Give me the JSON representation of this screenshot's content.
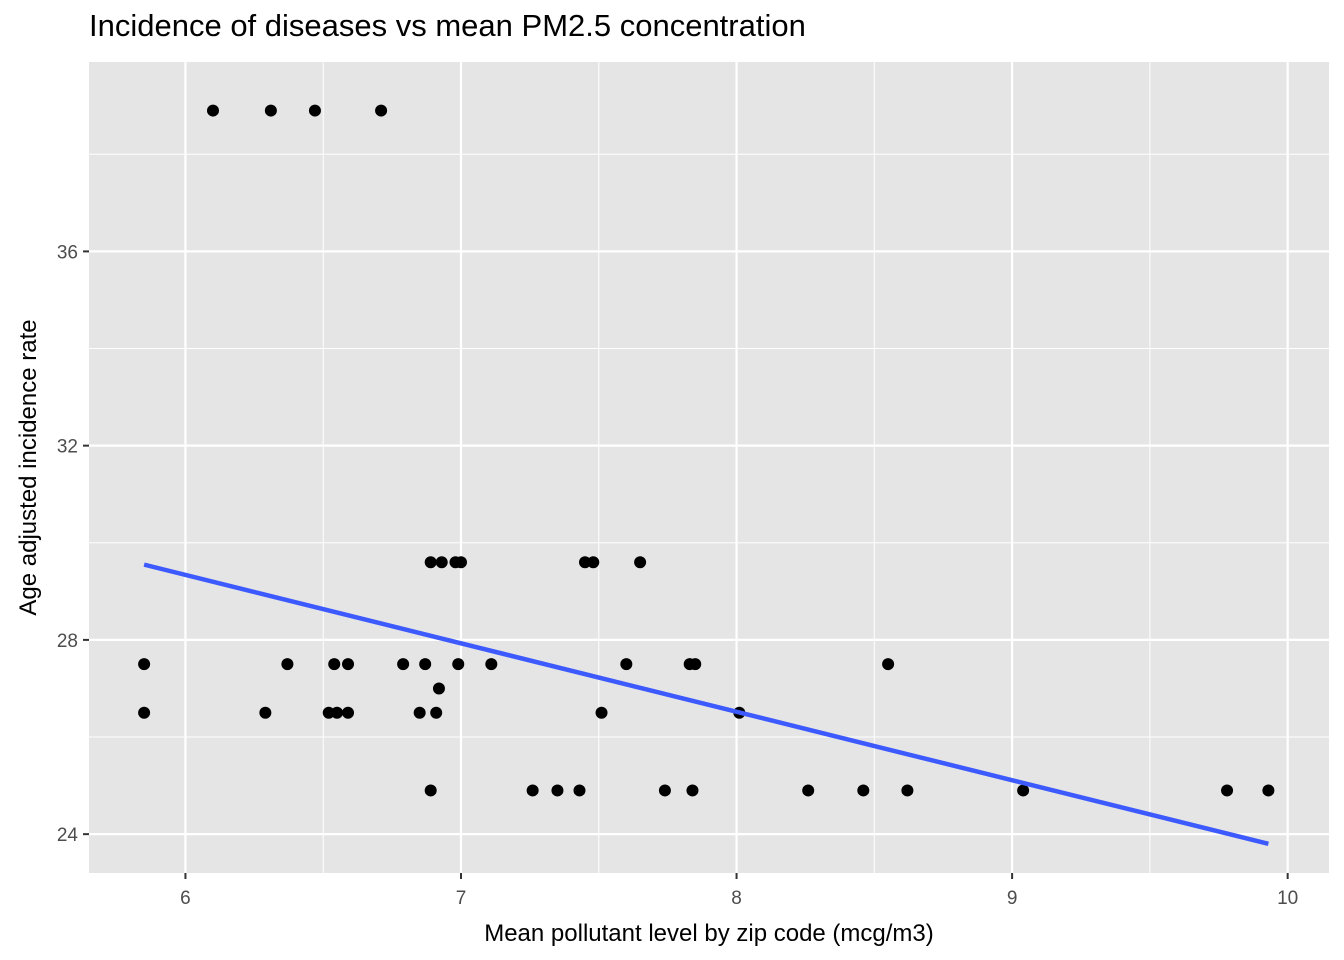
{
  "chart_data": {
    "type": "scatter",
    "title": "Incidence of diseases vs mean PM2.5 concentration",
    "xlabel": "Mean pollutant level by zip code (mcg/m3)",
    "ylabel": "Age adjusted incidence rate",
    "xlim": [
      5.65,
      10.15
    ],
    "ylim": [
      23.2,
      39.9
    ],
    "xticks": [
      6,
      7,
      8,
      9,
      10
    ],
    "xtick_labels": [
      "6",
      "7",
      "8",
      "9",
      "10"
    ],
    "yticks": [
      24,
      28,
      32,
      36
    ],
    "ytick_labels": [
      "24",
      "28",
      "32",
      "36"
    ],
    "grid": true,
    "background": "#e5e5e5",
    "grid_color": "#ffffff",
    "point_color": "#000000",
    "trend_color": "#3d5afe",
    "points": [
      {
        "x": 6.1,
        "y": 38.9
      },
      {
        "x": 6.31,
        "y": 38.9
      },
      {
        "x": 6.47,
        "y": 38.9
      },
      {
        "x": 6.71,
        "y": 38.9
      },
      {
        "x": 6.89,
        "y": 29.6
      },
      {
        "x": 6.93,
        "y": 29.6
      },
      {
        "x": 6.98,
        "y": 29.6
      },
      {
        "x": 7.0,
        "y": 29.6
      },
      {
        "x": 7.45,
        "y": 29.6
      },
      {
        "x": 7.48,
        "y": 29.6
      },
      {
        "x": 7.65,
        "y": 29.6
      },
      {
        "x": 5.85,
        "y": 27.5
      },
      {
        "x": 6.37,
        "y": 27.5
      },
      {
        "x": 6.54,
        "y": 27.5
      },
      {
        "x": 6.59,
        "y": 27.5
      },
      {
        "x": 6.79,
        "y": 27.5
      },
      {
        "x": 6.87,
        "y": 27.5
      },
      {
        "x": 6.99,
        "y": 27.5
      },
      {
        "x": 7.11,
        "y": 27.5
      },
      {
        "x": 7.6,
        "y": 27.5
      },
      {
        "x": 7.83,
        "y": 27.5
      },
      {
        "x": 7.85,
        "y": 27.5
      },
      {
        "x": 8.55,
        "y": 27.5
      },
      {
        "x": 6.92,
        "y": 27.0
      },
      {
        "x": 5.85,
        "y": 26.5
      },
      {
        "x": 6.29,
        "y": 26.5
      },
      {
        "x": 6.52,
        "y": 26.5
      },
      {
        "x": 6.55,
        "y": 26.5
      },
      {
        "x": 6.59,
        "y": 26.5
      },
      {
        "x": 6.85,
        "y": 26.5
      },
      {
        "x": 6.91,
        "y": 26.5
      },
      {
        "x": 7.51,
        "y": 26.5
      },
      {
        "x": 8.01,
        "y": 26.5
      },
      {
        "x": 6.89,
        "y": 24.9
      },
      {
        "x": 7.26,
        "y": 24.9
      },
      {
        "x": 7.35,
        "y": 24.9
      },
      {
        "x": 7.43,
        "y": 24.9
      },
      {
        "x": 7.74,
        "y": 24.9
      },
      {
        "x": 7.84,
        "y": 24.9
      },
      {
        "x": 8.26,
        "y": 24.9
      },
      {
        "x": 8.46,
        "y": 24.9
      },
      {
        "x": 8.62,
        "y": 24.9
      },
      {
        "x": 9.04,
        "y": 24.9
      },
      {
        "x": 9.78,
        "y": 24.9
      },
      {
        "x": 9.93,
        "y": 24.9
      }
    ],
    "trend_line": {
      "x": [
        5.85,
        9.93
      ],
      "y": [
        29.55,
        23.8
      ]
    }
  }
}
